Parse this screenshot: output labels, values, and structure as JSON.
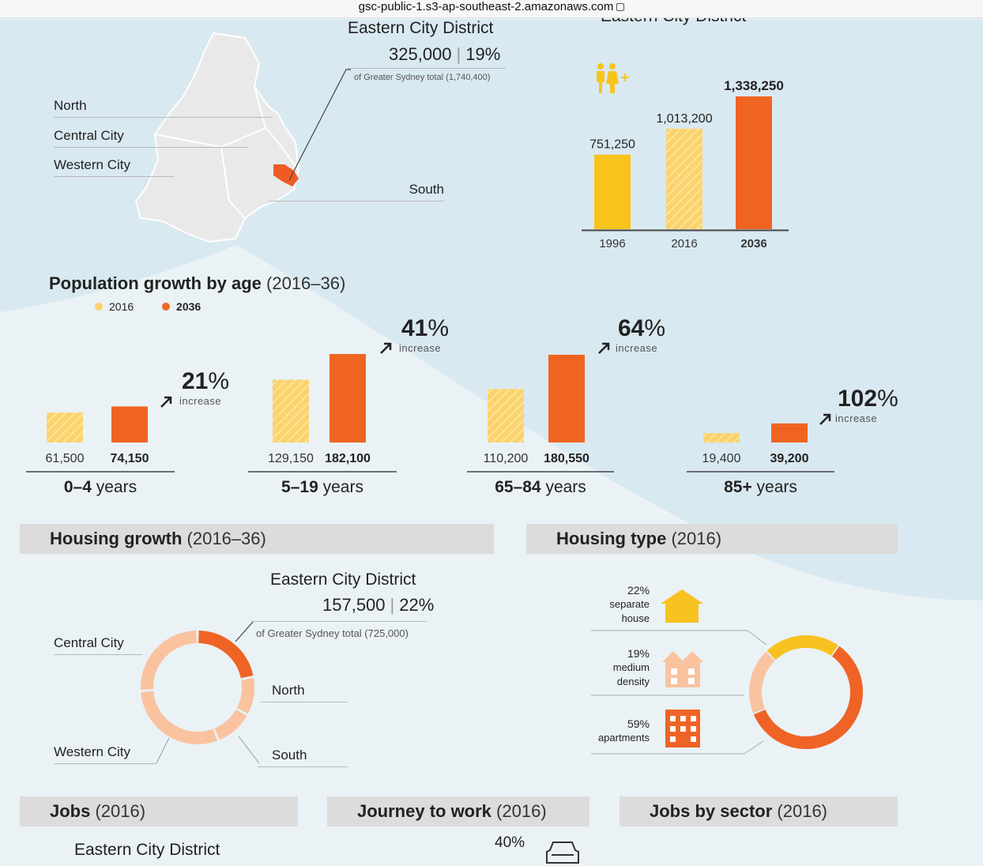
{
  "browser": {
    "url": "gsc-public-1.s3-ap-southeast-2.amazonaws.com"
  },
  "map": {
    "district_title": "Eastern City District",
    "population": "325,000",
    "share": "19%",
    "share_note": "of Greater Sydney total (1,740,400)",
    "labels": [
      "North",
      "Central City",
      "Western City",
      "South"
    ]
  },
  "pop_chart": {
    "title": "Eastern City District",
    "years": [
      "1996",
      "2016",
      "2036"
    ],
    "value_labels": [
      "751,250",
      "1,013,200",
      "1,338,250"
    ]
  },
  "age": {
    "title_bold": "Population growth by age",
    "title_light": "(2016–36)",
    "legend": [
      "2016",
      "2036"
    ],
    "increase_word": "increase",
    "groups": [
      {
        "num": "0–4",
        "unit": "years",
        "v2016": "61,500",
        "v2036": "74,150",
        "pct": "21"
      },
      {
        "num": "5–19",
        "unit": "years",
        "v2016": "129,150",
        "v2036": "182,100",
        "pct": "41"
      },
      {
        "num": "65–84",
        "unit": "years",
        "v2016": "110,200",
        "v2036": "180,550",
        "pct": "64"
      },
      {
        "num": "85+",
        "unit": "years",
        "v2016": "19,400",
        "v2036": "39,200",
        "pct": "102"
      }
    ],
    "pct_sign": "%"
  },
  "housing_growth": {
    "title_bold": "Housing growth",
    "title_light": "(2016–36)",
    "district_title": "Eastern City District",
    "dwellings": "157,500",
    "share": "22%",
    "share_note": "of Greater Sydney total (725,000)",
    "labels": [
      "Central City",
      "North",
      "Western City",
      "South"
    ]
  },
  "housing_type": {
    "title_bold": "Housing type",
    "title_light": "(2016)",
    "items": [
      {
        "pct": "22%",
        "line1": "separate",
        "line2": "house"
      },
      {
        "pct": "19%",
        "line1": "medium",
        "line2": "density"
      },
      {
        "pct": "59%",
        "line1": "apartments",
        "line2": ""
      }
    ]
  },
  "bottom": {
    "jobs_bold": "Jobs",
    "jobs_light": "(2016)",
    "journey_bold": "Journey to work",
    "journey_light": "(2016)",
    "sector_bold": "Jobs by sector",
    "sector_light": "(2016)",
    "jobs_district": "Eastern City District",
    "journey_pct": "40%"
  },
  "chart_data": [
    {
      "type": "bar",
      "title": "Eastern City District",
      "categories": [
        "1996",
        "2016",
        "2036"
      ],
      "values": [
        751250,
        1013200,
        1338250
      ],
      "ylim": [
        0,
        1400000
      ],
      "colors": [
        "#f8c31c",
        "#fbd36d",
        "#f06422"
      ],
      "grid": false
    },
    {
      "type": "bar",
      "title": "Population growth by age (2016–36)",
      "categories": [
        "0–4 years",
        "5–19 years",
        "65–84 years",
        "85+ years"
      ],
      "series": [
        {
          "name": "2016",
          "values": [
            61500,
            129150,
            110200,
            19400
          ]
        },
        {
          "name": "2036",
          "values": [
            74150,
            182100,
            180550,
            39200
          ]
        }
      ],
      "annotations": [
        "21% increase",
        "41% increase",
        "64% increase",
        "102% increase"
      ],
      "legend": "top-left",
      "colors": [
        "#fbd36d",
        "#f06422"
      ]
    },
    {
      "type": "pie",
      "title": "Housing growth (2016–36)",
      "categories": [
        "Eastern City",
        "North",
        "South",
        "Western City",
        "Central City"
      ],
      "values": [
        22,
        11,
        11,
        30,
        26
      ],
      "colors": [
        "#ef6426",
        "#f9c3a0",
        "#f9c3a0",
        "#f9c3a0",
        "#f9c3a0"
      ]
    },
    {
      "type": "pie",
      "title": "Housing type (2016)",
      "categories": [
        "separate house",
        "medium density",
        "apartments"
      ],
      "values": [
        22,
        19,
        59
      ],
      "colors": [
        "#f7c21f",
        "#f9c3a0",
        "#ef6426"
      ]
    }
  ]
}
